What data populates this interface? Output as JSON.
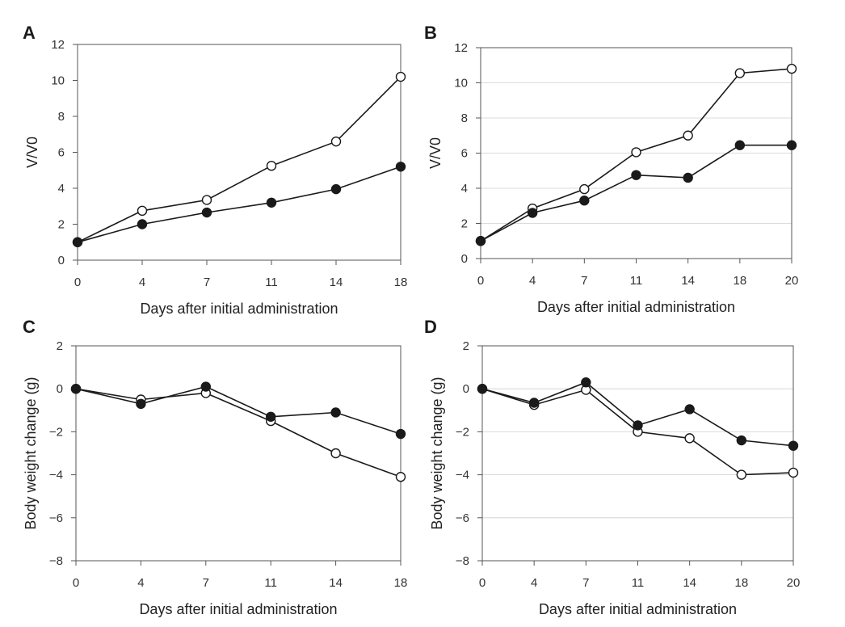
{
  "chart_data": [
    {
      "panel": "A",
      "type": "line",
      "xlabel": "Days after initial administration",
      "ylabel": "V/V0",
      "x": [
        0,
        4,
        7,
        11,
        14,
        18
      ],
      "ylim": [
        0,
        12
      ],
      "yticks": [
        0,
        2,
        4,
        6,
        8,
        10,
        12
      ],
      "grid": false,
      "series": [
        {
          "marker": "open-circle",
          "values": [
            1.0,
            2.75,
            3.35,
            5.25,
            6.6,
            10.2
          ]
        },
        {
          "marker": "filled-circle",
          "values": [
            1.0,
            2.0,
            2.65,
            3.2,
            3.95,
            5.2
          ]
        }
      ]
    },
    {
      "panel": "B",
      "type": "line",
      "xlabel": "Days after initial administration",
      "ylabel": "V/V0",
      "x": [
        0,
        4,
        7,
        11,
        14,
        18,
        20
      ],
      "ylim": [
        0,
        12
      ],
      "yticks": [
        0,
        2,
        4,
        6,
        8,
        10,
        12
      ],
      "grid": true,
      "series": [
        {
          "marker": "open-circle",
          "values": [
            1.0,
            2.85,
            3.95,
            6.05,
            7.0,
            10.55,
            10.8
          ]
        },
        {
          "marker": "filled-circle",
          "values": [
            1.0,
            2.6,
            3.3,
            4.75,
            4.6,
            6.45,
            6.45
          ]
        }
      ]
    },
    {
      "panel": "C",
      "type": "line",
      "xlabel": "Days after initial administration",
      "ylabel": "Body weight change (g)",
      "x": [
        0,
        4,
        7,
        11,
        14,
        18
      ],
      "ylim": [
        -8,
        2
      ],
      "yticks": [
        "2",
        "0",
        "−2",
        "−4",
        "−6",
        "−8"
      ],
      "grid": false,
      "series": [
        {
          "marker": "open-circle",
          "values": [
            0.0,
            -0.5,
            -0.2,
            -1.5,
            -3.0,
            -4.1
          ]
        },
        {
          "marker": "filled-circle",
          "values": [
            0.0,
            -0.7,
            0.1,
            -1.3,
            -1.1,
            -2.1
          ]
        }
      ]
    },
    {
      "panel": "D",
      "type": "line",
      "xlabel": "Days after initial administration",
      "ylabel": "Body weight change (g)",
      "x": [
        0,
        4,
        7,
        11,
        14,
        18,
        20
      ],
      "ylim": [
        -8,
        2
      ],
      "yticks": [
        "2",
        "0",
        "−2",
        "−4",
        "−6",
        "−8"
      ],
      "grid": true,
      "series": [
        {
          "marker": "open-circle",
          "values": [
            0.0,
            -0.75,
            -0.05,
            -2.0,
            -2.3,
            -4.0,
            -3.9
          ]
        },
        {
          "marker": "filled-circle",
          "values": [
            0.0,
            -0.65,
            0.3,
            -1.7,
            -0.95,
            -2.4,
            -2.65
          ]
        }
      ]
    }
  ]
}
